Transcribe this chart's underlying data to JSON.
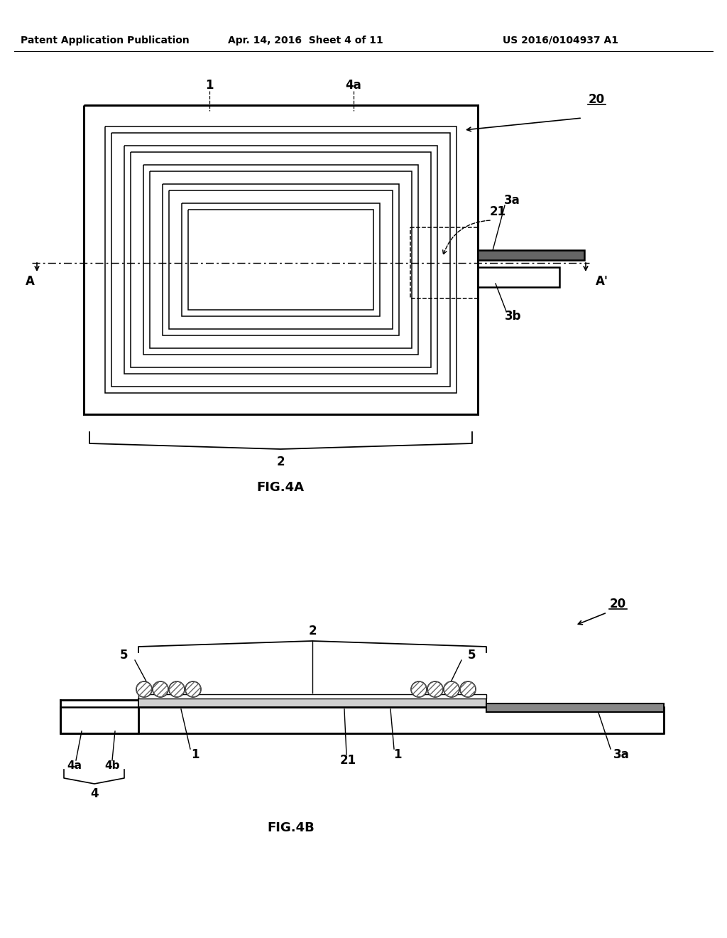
{
  "bg": "#ffffff",
  "lc": "#000000",
  "header_left": "Patent Application Publication",
  "header_mid": "Apr. 14, 2016  Sheet 4 of 11",
  "header_right": "US 2016/0104937 A1",
  "fig4a": "FIG.4A",
  "fig4b": "FIG.4B",
  "lbl_20": "20",
  "lbl_1": "1",
  "lbl_2": "2",
  "lbl_3a": "3a",
  "lbl_3b": "3b",
  "lbl_4": "4",
  "lbl_4a": "4a",
  "lbl_4b": "4b",
  "lbl_5": "5",
  "lbl_21": "21",
  "lbl_A": "A",
  "lbl_Ap": "A'"
}
